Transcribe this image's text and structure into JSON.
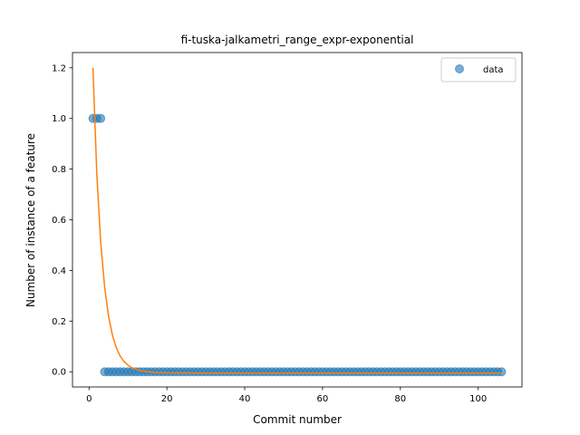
{
  "chart_data": {
    "type": "scatter",
    "title": "fi-tuska-jalkametri_range_expr-exponential",
    "xlabel": "Commit number",
    "ylabel": "Number of instance of a feature",
    "xlim": [
      -4.25,
      111.25
    ],
    "ylim": [
      -0.06,
      1.26
    ],
    "x_ticks": [
      0,
      20,
      40,
      60,
      80,
      100
    ],
    "x_tick_labels": [
      "0",
      "20",
      "40",
      "60",
      "80",
      "100"
    ],
    "y_ticks": [
      0.0,
      0.2,
      0.4,
      0.6,
      0.8,
      1.0,
      1.2
    ],
    "y_tick_labels": [
      "0.0",
      "0.2",
      "0.4",
      "0.6",
      "0.8",
      "1.0",
      "1.2"
    ],
    "grid": false,
    "legend_position": "top-right",
    "series": [
      {
        "name": "data",
        "kind": "scatter",
        "color": "#1f77b4",
        "points": [
          [
            1,
            1
          ],
          [
            2,
            1
          ],
          [
            3,
            1
          ],
          [
            4,
            0
          ],
          [
            5,
            0
          ],
          [
            6,
            0
          ],
          [
            7,
            0
          ],
          [
            8,
            0
          ],
          [
            9,
            0
          ],
          [
            10,
            0
          ],
          [
            11,
            0
          ],
          [
            12,
            0
          ],
          [
            13,
            0
          ],
          [
            14,
            0
          ],
          [
            15,
            0
          ],
          [
            16,
            0
          ],
          [
            17,
            0
          ],
          [
            18,
            0
          ],
          [
            19,
            0
          ],
          [
            20,
            0
          ],
          [
            21,
            0
          ],
          [
            22,
            0
          ],
          [
            23,
            0
          ],
          [
            24,
            0
          ],
          [
            25,
            0
          ],
          [
            26,
            0
          ],
          [
            27,
            0
          ],
          [
            28,
            0
          ],
          [
            29,
            0
          ],
          [
            30,
            0
          ],
          [
            31,
            0
          ],
          [
            32,
            0
          ],
          [
            33,
            0
          ],
          [
            34,
            0
          ],
          [
            35,
            0
          ],
          [
            36,
            0
          ],
          [
            37,
            0
          ],
          [
            38,
            0
          ],
          [
            39,
            0
          ],
          [
            40,
            0
          ],
          [
            41,
            0
          ],
          [
            42,
            0
          ],
          [
            43,
            0
          ],
          [
            44,
            0
          ],
          [
            45,
            0
          ],
          [
            46,
            0
          ],
          [
            47,
            0
          ],
          [
            48,
            0
          ],
          [
            49,
            0
          ],
          [
            50,
            0
          ],
          [
            51,
            0
          ],
          [
            52,
            0
          ],
          [
            53,
            0
          ],
          [
            54,
            0
          ],
          [
            55,
            0
          ],
          [
            56,
            0
          ],
          [
            57,
            0
          ],
          [
            58,
            0
          ],
          [
            59,
            0
          ],
          [
            60,
            0
          ],
          [
            61,
            0
          ],
          [
            62,
            0
          ],
          [
            63,
            0
          ],
          [
            64,
            0
          ],
          [
            65,
            0
          ],
          [
            66,
            0
          ],
          [
            67,
            0
          ],
          [
            68,
            0
          ],
          [
            69,
            0
          ],
          [
            70,
            0
          ],
          [
            71,
            0
          ],
          [
            72,
            0
          ],
          [
            73,
            0
          ],
          [
            74,
            0
          ],
          [
            75,
            0
          ],
          [
            76,
            0
          ],
          [
            77,
            0
          ],
          [
            78,
            0
          ],
          [
            79,
            0
          ],
          [
            80,
            0
          ],
          [
            81,
            0
          ],
          [
            82,
            0
          ],
          [
            83,
            0
          ],
          [
            84,
            0
          ],
          [
            85,
            0
          ],
          [
            86,
            0
          ],
          [
            87,
            0
          ],
          [
            88,
            0
          ],
          [
            89,
            0
          ],
          [
            90,
            0
          ],
          [
            91,
            0
          ],
          [
            92,
            0
          ],
          [
            93,
            0
          ],
          [
            94,
            0
          ],
          [
            95,
            0
          ],
          [
            96,
            0
          ],
          [
            97,
            0
          ],
          [
            98,
            0
          ],
          [
            99,
            0
          ],
          [
            100,
            0
          ],
          [
            101,
            0
          ],
          [
            102,
            0
          ],
          [
            103,
            0
          ],
          [
            104,
            0
          ],
          [
            105,
            0
          ],
          [
            106,
            0
          ]
        ]
      },
      {
        "kind": "line",
        "color": "#ff7f0e",
        "points": [
          [
            1,
            1.2
          ],
          [
            2,
            0.78
          ],
          [
            3,
            0.51
          ],
          [
            4,
            0.335
          ],
          [
            5,
            0.22
          ],
          [
            6,
            0.145
          ],
          [
            7,
            0.095
          ],
          [
            8,
            0.062
          ],
          [
            9,
            0.04
          ],
          [
            10,
            0.026
          ],
          [
            11,
            0.016
          ],
          [
            12,
            0.01
          ],
          [
            13,
            0.005
          ],
          [
            14,
            0.002
          ],
          [
            16,
            -0.001
          ],
          [
            18,
            -0.003
          ],
          [
            20,
            -0.004
          ],
          [
            30,
            -0.005
          ],
          [
            60,
            -0.005
          ],
          [
            106,
            -0.005
          ]
        ]
      }
    ]
  }
}
